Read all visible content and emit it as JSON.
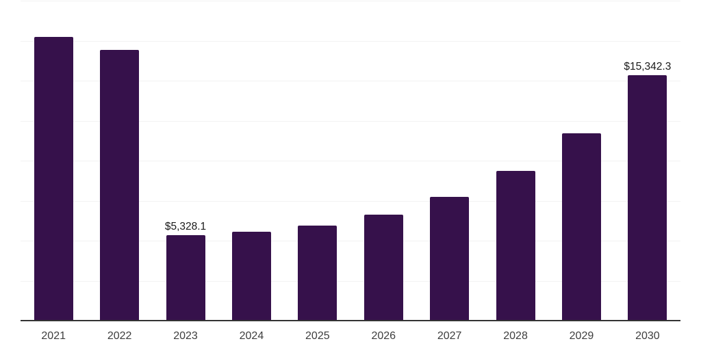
{
  "chart_data": {
    "type": "bar",
    "title": "",
    "xlabel": "",
    "ylabel": "",
    "categories": [
      "2021",
      "2022",
      "2023",
      "2024",
      "2025",
      "2026",
      "2027",
      "2028",
      "2029",
      "2030"
    ],
    "values": [
      17720,
      16910,
      5328.1,
      5570,
      5940,
      6610,
      7720,
      9360,
      11710,
      15342.3
    ],
    "value_labels": {
      "2023": "$5,328.1",
      "2030": "$15,342.3"
    },
    "ylim": [
      0,
      20000
    ],
    "gridline_step": 2500,
    "grid": "horizontal-only",
    "legend": "none",
    "colors": {
      "bar": "#36114b",
      "gridline": "#f2f2f2",
      "axis_line": "#333333",
      "value_label_text": "#1a1a1a",
      "tick_label_text": "#3d3d3d",
      "background": "#ffffff"
    }
  }
}
